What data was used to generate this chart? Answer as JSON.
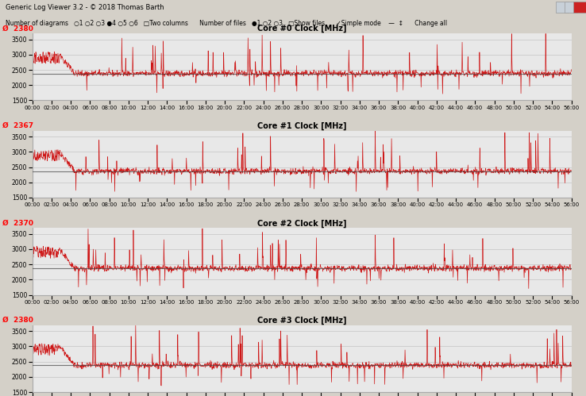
{
  "title_bar": "Generic Log Viewer 3.2 - © 2018 Thomas Barth",
  "toolbar_text": "Number of diagrams  ○1 ○2 ○3 ●4 ○5 ○6  ☐Two columns     Number of files  ●1 ○2 ○3  ☐Show files     ☑Simple mode  ——   Change all",
  "panels": [
    {
      "title": "Core #0 Clock [MHz]",
      "avg": "2380",
      "avg_label": "Ø  2380"
    },
    {
      "title": "Core #1 Clock [MHz]",
      "avg": "2367",
      "avg_label": "Ø  2367"
    },
    {
      "title": "Core #2 Clock [MHz]",
      "avg": "2370",
      "avg_label": "Ø  2370"
    },
    {
      "title": "Core #3 Clock [MHz]",
      "avg": "2380",
      "avg_label": "Ø  2380"
    }
  ],
  "ylim": [
    1500,
    3700
  ],
  "yticks": [
    1500,
    2000,
    2500,
    3000,
    3500
  ],
  "time_total_seconds": 3360,
  "time_tick_seconds": 120,
  "bg_color": "#d4d0c8",
  "plot_bg": "#e8e8e8",
  "line_color": "#cc0000",
  "grid_color": "#bbbbbb",
  "avg_line_color": "#444444",
  "avg_value": 2400,
  "base_level": 2380,
  "spike_up_color": "#cc0000",
  "spike_down_color": "#cc0000"
}
